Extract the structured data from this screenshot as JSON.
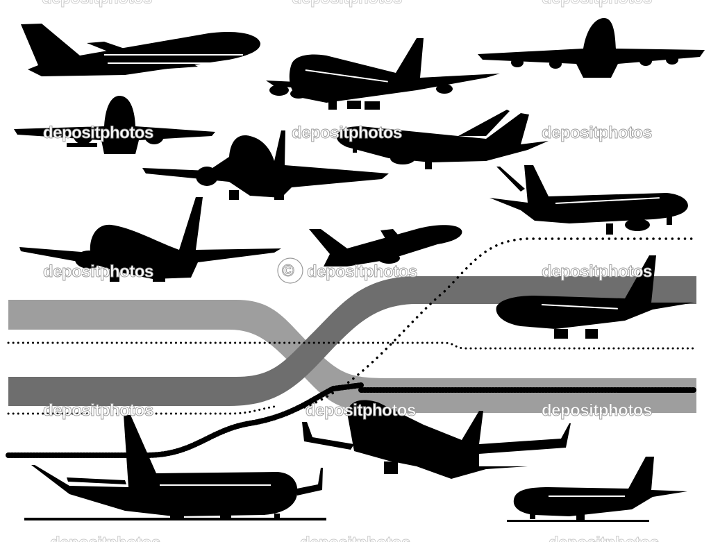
{
  "watermark": {
    "text": "depositphotos",
    "copyright_symbol": "©"
  },
  "colors": {
    "silhouette": "#000000",
    "stripe_light": "#9e9e9e",
    "stripe_dark": "#6e6e6e",
    "dotted_line": "#000000",
    "background": "#ffffff"
  },
  "scene": {
    "subject": "airplane silhouettes",
    "plane_count": 13
  }
}
